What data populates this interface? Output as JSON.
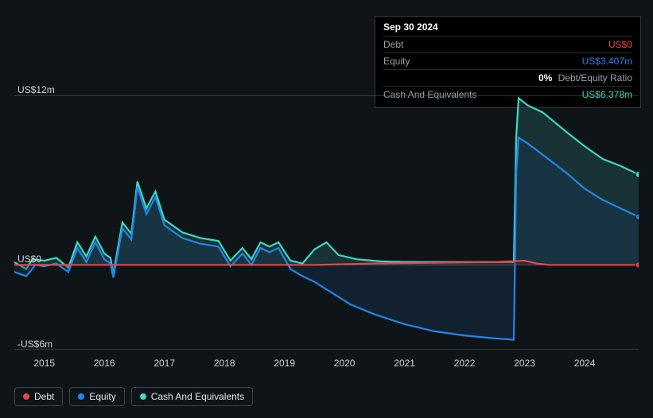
{
  "tooltip": {
    "date": "Sep 30 2024",
    "rows": [
      {
        "label": "Debt",
        "value": "US$0",
        "color": "#e84545"
      },
      {
        "label": "Equity",
        "value": "US$3.407m",
        "color": "#2386e8"
      },
      {
        "label": "",
        "value": "0% Debt/Equity Ratio",
        "color": "#ffffff",
        "ratio": true
      },
      {
        "label": "Cash And Equivalents",
        "value": "US$6.378m",
        "color": "#3dd9c1"
      }
    ]
  },
  "chart": {
    "type": "area",
    "background_color": "#0f1419",
    "grid_color": "#5a6169",
    "text_color": "#cfd4d9",
    "y_axis": {
      "min": -6,
      "max": 12,
      "ticks": [
        {
          "value": 12,
          "label": "US$12m"
        },
        {
          "value": 0,
          "label": "US$0"
        },
        {
          "value": -6,
          "label": "-US$6m"
        }
      ]
    },
    "x_axis": {
      "min": 2014.5,
      "max": 2024.9,
      "ticks": [
        2015,
        2016,
        2017,
        2018,
        2019,
        2020,
        2021,
        2022,
        2023,
        2024
      ]
    },
    "series": [
      {
        "name": "Cash And Equivalents",
        "color": "#3dd9c1",
        "fill": "#2a6b6b",
        "end_dot": true,
        "points": [
          [
            2014.5,
            0.2
          ],
          [
            2014.7,
            -0.3
          ],
          [
            2014.8,
            0.4
          ],
          [
            2015.0,
            0.3
          ],
          [
            2015.2,
            0.5
          ],
          [
            2015.4,
            -0.2
          ],
          [
            2015.55,
            1.6
          ],
          [
            2015.7,
            0.6
          ],
          [
            2015.85,
            2.0
          ],
          [
            2016.0,
            0.8
          ],
          [
            2016.1,
            0.5
          ],
          [
            2016.15,
            -0.6
          ],
          [
            2016.3,
            3.0
          ],
          [
            2016.45,
            2.2
          ],
          [
            2016.55,
            5.9
          ],
          [
            2016.7,
            4.0
          ],
          [
            2016.85,
            5.2
          ],
          [
            2017.0,
            3.2
          ],
          [
            2017.3,
            2.3
          ],
          [
            2017.6,
            1.9
          ],
          [
            2017.9,
            1.7
          ],
          [
            2018.1,
            0.3
          ],
          [
            2018.3,
            1.2
          ],
          [
            2018.45,
            0.4
          ],
          [
            2018.6,
            1.6
          ],
          [
            2018.75,
            1.3
          ],
          [
            2018.9,
            1.6
          ],
          [
            2019.1,
            0.3
          ],
          [
            2019.3,
            0.1
          ],
          [
            2019.5,
            1.1
          ],
          [
            2019.7,
            1.6
          ],
          [
            2019.9,
            0.7
          ],
          [
            2020.2,
            0.4
          ],
          [
            2020.6,
            0.25
          ],
          [
            2021.0,
            0.2
          ],
          [
            2021.5,
            0.2
          ],
          [
            2022.0,
            0.2
          ],
          [
            2022.5,
            0.2
          ],
          [
            2022.82,
            0.2
          ],
          [
            2022.86,
            9.0
          ],
          [
            2022.9,
            11.8
          ],
          [
            2023.05,
            11.3
          ],
          [
            2023.3,
            10.8
          ],
          [
            2023.7,
            9.4
          ],
          [
            2024.0,
            8.4
          ],
          [
            2024.3,
            7.5
          ],
          [
            2024.6,
            7.0
          ],
          [
            2024.9,
            6.4
          ]
        ]
      },
      {
        "name": "Equity",
        "color": "#2386e8",
        "fill": "#1a3a5c",
        "end_dot": true,
        "points": [
          [
            2014.5,
            -0.5
          ],
          [
            2014.7,
            -0.8
          ],
          [
            2014.85,
            0.0
          ],
          [
            2015.0,
            -0.1
          ],
          [
            2015.2,
            0.1
          ],
          [
            2015.4,
            -0.5
          ],
          [
            2015.55,
            1.2
          ],
          [
            2015.7,
            0.2
          ],
          [
            2015.85,
            1.6
          ],
          [
            2016.0,
            0.4
          ],
          [
            2016.1,
            0.1
          ],
          [
            2016.15,
            -0.9
          ],
          [
            2016.3,
            2.6
          ],
          [
            2016.45,
            1.8
          ],
          [
            2016.55,
            5.5
          ],
          [
            2016.7,
            3.6
          ],
          [
            2016.85,
            4.8
          ],
          [
            2017.0,
            2.8
          ],
          [
            2017.3,
            1.9
          ],
          [
            2017.6,
            1.5
          ],
          [
            2017.9,
            1.3
          ],
          [
            2018.1,
            -0.1
          ],
          [
            2018.3,
            0.8
          ],
          [
            2018.45,
            0.0
          ],
          [
            2018.6,
            1.2
          ],
          [
            2018.75,
            0.9
          ],
          [
            2018.9,
            1.2
          ],
          [
            2019.1,
            -0.3
          ],
          [
            2019.3,
            -0.8
          ],
          [
            2019.5,
            -1.2
          ],
          [
            2019.8,
            -2.0
          ],
          [
            2020.1,
            -2.8
          ],
          [
            2020.5,
            -3.5
          ],
          [
            2021.0,
            -4.2
          ],
          [
            2021.5,
            -4.7
          ],
          [
            2022.0,
            -5.0
          ],
          [
            2022.5,
            -5.2
          ],
          [
            2022.82,
            -5.3
          ],
          [
            2022.86,
            6.5
          ],
          [
            2022.9,
            9.0
          ],
          [
            2023.05,
            8.6
          ],
          [
            2023.3,
            7.8
          ],
          [
            2023.7,
            6.5
          ],
          [
            2024.0,
            5.4
          ],
          [
            2024.3,
            4.6
          ],
          [
            2024.6,
            4.0
          ],
          [
            2024.9,
            3.4
          ]
        ]
      },
      {
        "name": "Debt",
        "color": "#e84545",
        "fill": "#5c1a1a",
        "end_dot": true,
        "points": [
          [
            2014.5,
            0.0
          ],
          [
            2015.0,
            0.0
          ],
          [
            2015.5,
            0.0
          ],
          [
            2016.0,
            0.0
          ],
          [
            2016.5,
            0.0
          ],
          [
            2017.0,
            0.0
          ],
          [
            2017.5,
            0.0
          ],
          [
            2018.0,
            0.0
          ],
          [
            2018.5,
            0.0
          ],
          [
            2019.0,
            0.0
          ],
          [
            2019.5,
            0.0
          ],
          [
            2020.0,
            0.05
          ],
          [
            2020.5,
            0.1
          ],
          [
            2021.0,
            0.12
          ],
          [
            2021.5,
            0.15
          ],
          [
            2022.0,
            0.18
          ],
          [
            2022.5,
            0.2
          ],
          [
            2023.0,
            0.3
          ],
          [
            2023.2,
            0.1
          ],
          [
            2023.4,
            0.0
          ],
          [
            2024.0,
            0.0
          ],
          [
            2024.5,
            0.0
          ],
          [
            2024.9,
            0.0
          ]
        ]
      }
    ],
    "draw_order": [
      "Cash And Equivalents",
      "Equity",
      "Debt"
    ]
  },
  "legend": [
    {
      "label": "Debt",
      "color": "#e84545"
    },
    {
      "label": "Equity",
      "color": "#2386e8"
    },
    {
      "label": "Cash And Equivalents",
      "color": "#3dd9c1"
    }
  ]
}
